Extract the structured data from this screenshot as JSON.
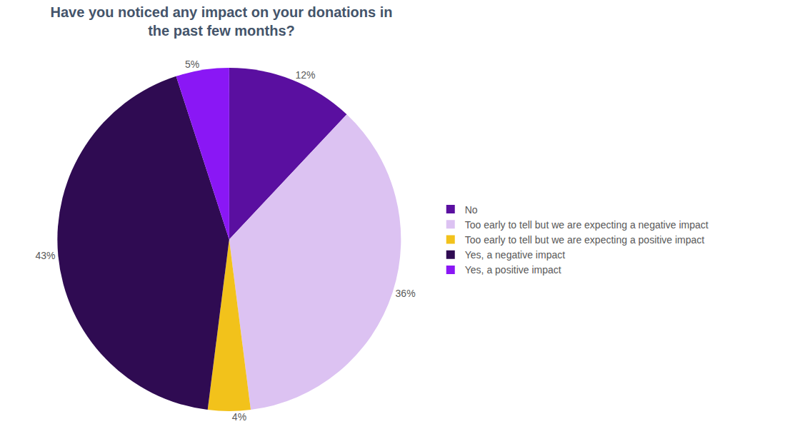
{
  "chart_data": {
    "type": "pie",
    "title": "Have you noticed any impact on your donations in the past few months?",
    "categories": [
      "No",
      "Too early to tell but we are expecting a negative impact",
      "Too early to tell but we are expecting a positive impact",
      "Yes, a negative impact",
      "Yes, a positive impact"
    ],
    "values": [
      12,
      36,
      4,
      43,
      5
    ],
    "value_labels": [
      "12%",
      "36%",
      "4%",
      "43%",
      "5%"
    ],
    "colors": [
      "#5a0fa0",
      "#dcc2f2",
      "#f2c21b",
      "#2f0b52",
      "#8a17f5"
    ],
    "data_labels": true,
    "legend": "right"
  }
}
